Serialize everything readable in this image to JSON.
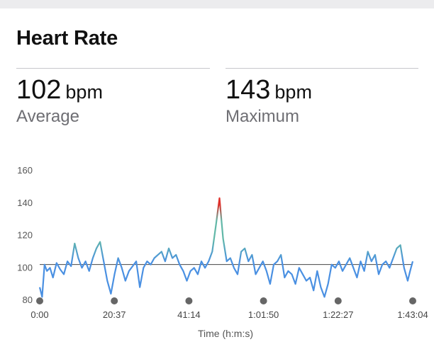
{
  "card": {
    "title": "Heart Rate"
  },
  "stats": {
    "average": {
      "value": "102",
      "unit": "bpm",
      "label": "Average"
    },
    "maximum": {
      "value": "143",
      "unit": "bpm",
      "label": "Maximum"
    }
  },
  "chart_data": {
    "type": "line",
    "title": "",
    "xlabel": "Time (h:m:s)",
    "ylabel": "",
    "xlim": [
      0,
      6184
    ],
    "ylim": [
      70,
      160
    ],
    "yticks": [
      80,
      100,
      120,
      140,
      160
    ],
    "xticks": [
      "0:00",
      "20:37",
      "41:14",
      "1:01:50",
      "1:22:27",
      "1:43:04"
    ],
    "reference_line": 102,
    "colors": {
      "low": "#4a90e2",
      "mid": "#62b8a8",
      "high": "#e0302a",
      "reference": "#444444"
    },
    "series": [
      {
        "x": [
          0,
          40,
          80,
          120,
          170,
          220,
          280,
          340,
          400,
          460,
          520,
          580,
          640,
          700,
          760,
          820,
          880,
          940,
          1000,
          1060,
          1120,
          1180,
          1240,
          1300,
          1360,
          1420,
          1480,
          1540,
          1600,
          1660,
          1720,
          1780,
          1840,
          1900,
          1960,
          2020,
          2080,
          2140,
          2200,
          2260,
          2320,
          2380,
          2440,
          2500,
          2560,
          2620,
          2680,
          2740,
          2800,
          2860,
          2920,
          2980,
          3040,
          3100,
          3160,
          3220,
          3280,
          3340,
          3400,
          3460,
          3520,
          3580,
          3640,
          3700,
          3760,
          3820,
          3880,
          3940,
          4000,
          4060,
          4120,
          4180,
          4240,
          4300,
          4360,
          4420,
          4480,
          4540,
          4600,
          4660,
          4720,
          4780,
          4840,
          4900,
          4960,
          5020,
          5080,
          5140,
          5200,
          5260,
          5320,
          5380,
          5440,
          5500,
          5560,
          5620,
          5680,
          5740,
          5800,
          5860,
          5920,
          5980,
          6040,
          6100,
          6140,
          6184
        ],
        "y": [
          88,
          82,
          102,
          98,
          100,
          94,
          103,
          99,
          96,
          104,
          101,
          115,
          106,
          100,
          104,
          98,
          106,
          112,
          116,
          104,
          92,
          84,
          96,
          106,
          100,
          92,
          98,
          101,
          104,
          88,
          100,
          104,
          102,
          106,
          108,
          110,
          104,
          112,
          106,
          108,
          102,
          98,
          92,
          98,
          100,
          96,
          104,
          100,
          104,
          110,
          126,
          143,
          118,
          104,
          106,
          100,
          96,
          110,
          112,
          104,
          108,
          96,
          100,
          104,
          98,
          90,
          102,
          104,
          108,
          94,
          98,
          96,
          90,
          100,
          96,
          92,
          94,
          86,
          98,
          88,
          82,
          90,
          102,
          100,
          104,
          98,
          102,
          106,
          100,
          94,
          104,
          98,
          110,
          104,
          108,
          96,
          102,
          104,
          100,
          106,
          112,
          114,
          100,
          92,
          98,
          104
        ]
      }
    ]
  }
}
